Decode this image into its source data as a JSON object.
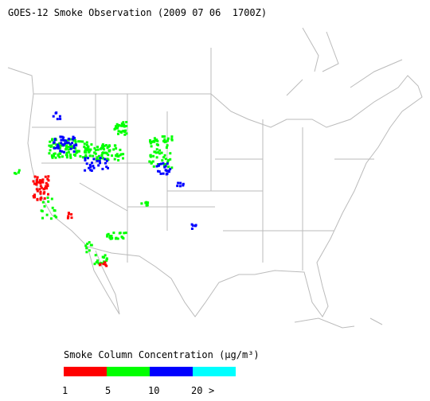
{
  "title": "GOES-12 Smoke Observation (2009 07 06  1700Z)",
  "legend": {
    "title": "Smoke Column Concentration (μg/m³)",
    "colors": [
      "#ff0000",
      "#00ff00",
      "#0000ff",
      "#00ffff"
    ],
    "ticks": [
      1,
      5,
      10,
      20
    ],
    "overflow_label": ">"
  }
}
